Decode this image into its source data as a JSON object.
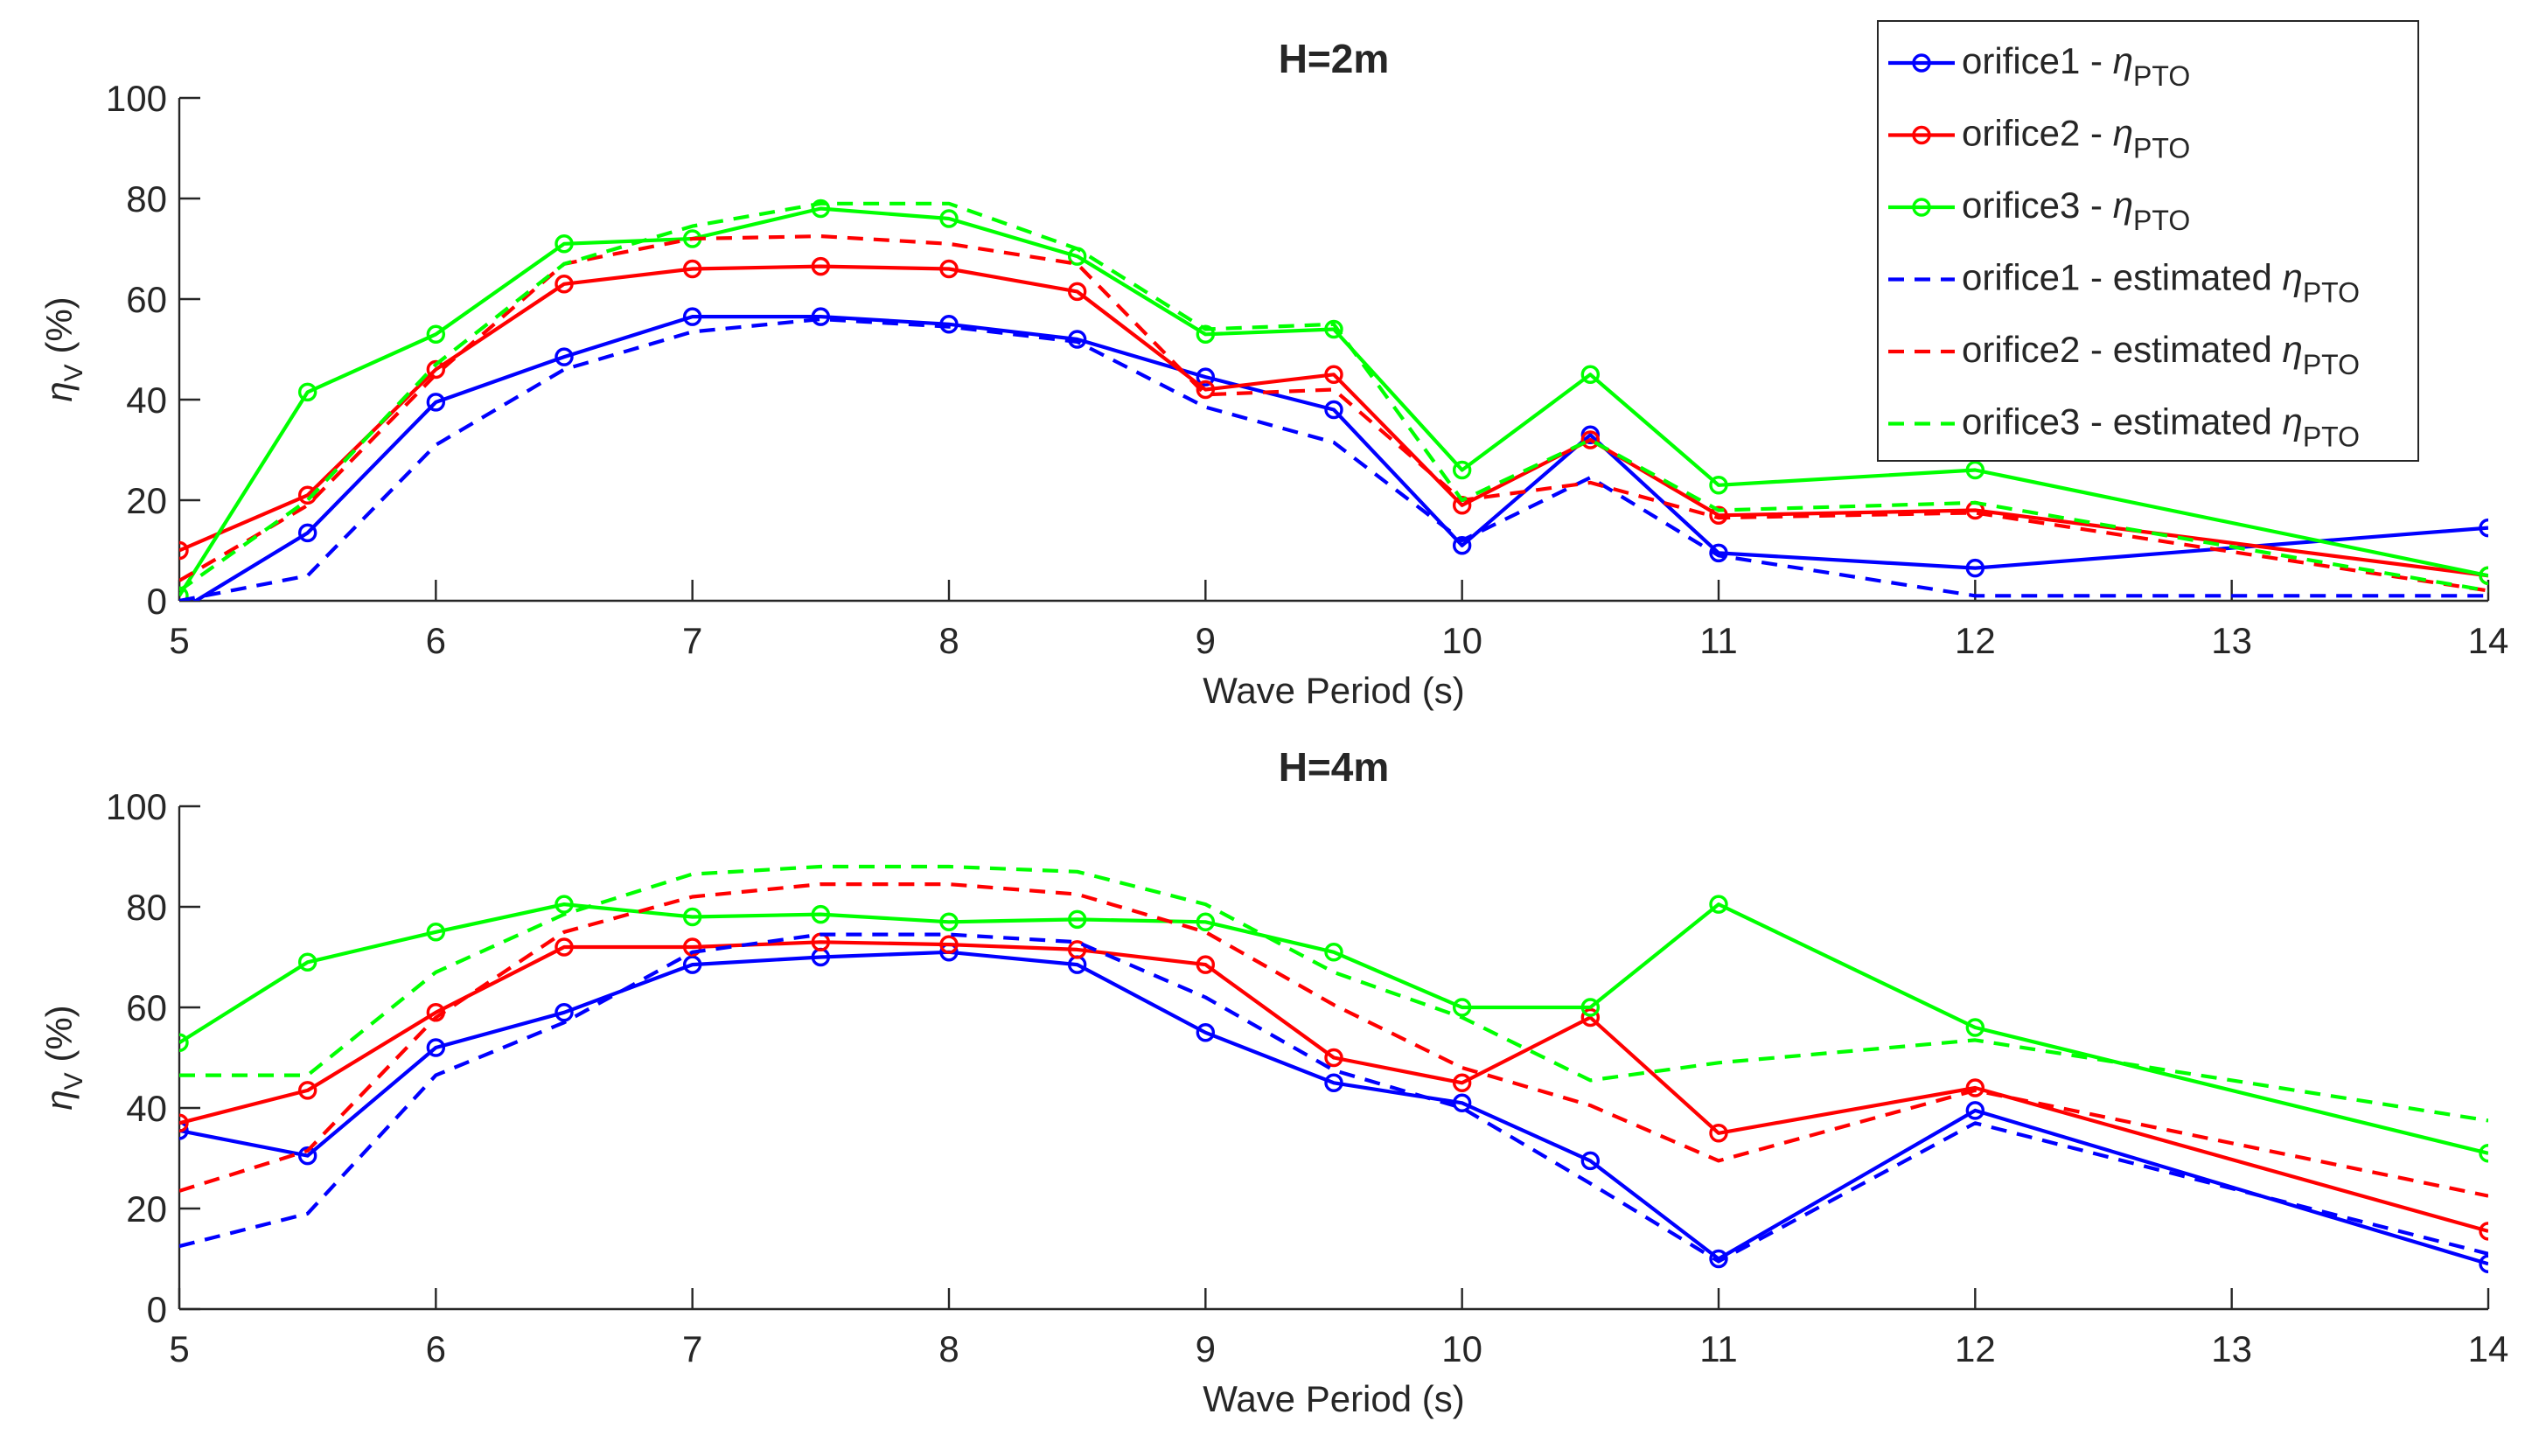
{
  "chart_data": [
    {
      "type": "line",
      "title": "H=2m",
      "xlabel": "Wave Period (s)",
      "ylabel_main": "η",
      "ylabel_sub": "V",
      "ylabel_unit": " (%)",
      "xlim": [
        5,
        14
      ],
      "ylim": [
        0,
        100
      ],
      "xticks": [
        5,
        6,
        7,
        8,
        9,
        10,
        11,
        12,
        13,
        14
      ],
      "yticks": [
        0,
        20,
        40,
        60,
        80,
        100
      ],
      "legend_position": "top-right",
      "series": [
        {
          "name": "orifice1 - ηPTO",
          "color": "#0000ff",
          "style": "solid",
          "markers": true,
          "x": [
            5,
            5.5,
            6,
            6.5,
            7,
            7.5,
            8,
            8.5,
            9,
            9.5,
            10,
            10.5,
            11,
            12,
            14
          ],
          "y": [
            -2,
            13.5,
            39.5,
            48.5,
            56.5,
            56.5,
            55,
            52,
            44.5,
            38,
            11,
            33,
            9.5,
            6.5,
            14.5
          ]
        },
        {
          "name": "orifice2 - ηPTO",
          "color": "#ff0000",
          "style": "solid",
          "markers": true,
          "x": [
            5,
            5.5,
            6,
            6.5,
            7,
            7.5,
            8,
            8.5,
            9,
            9.5,
            10,
            10.5,
            11,
            12,
            14
          ],
          "y": [
            10,
            21,
            46,
            63,
            66,
            66.5,
            66,
            61.5,
            42,
            45,
            19,
            32,
            17,
            18,
            5
          ]
        },
        {
          "name": "orifice3 - ηPTO",
          "color": "#00ff00",
          "style": "solid",
          "markers": true,
          "x": [
            5,
            5.5,
            6,
            6.5,
            7,
            7.5,
            8,
            8.5,
            9,
            9.5,
            10,
            10.5,
            11,
            12,
            14
          ],
          "y": [
            1,
            41.5,
            53,
            71,
            72,
            78,
            76,
            68.5,
            53,
            54,
            26,
            45,
            23,
            26,
            5
          ]
        },
        {
          "name": "orifice1 - estimated ηPTO",
          "color": "#0000ff",
          "style": "dashed",
          "markers": false,
          "x": [
            5,
            5.5,
            6,
            6.5,
            7,
            7.5,
            8,
            8.5,
            9,
            9.5,
            10,
            10.5,
            11,
            12,
            14
          ],
          "y": [
            0,
            5,
            31,
            46,
            53.5,
            56,
            54.5,
            51.5,
            38.5,
            31.5,
            12,
            24.5,
            9,
            1,
            1
          ]
        },
        {
          "name": "orifice2 - estimated ηPTO",
          "color": "#ff0000",
          "style": "dashed",
          "markers": false,
          "x": [
            5,
            5.5,
            6,
            6.5,
            7,
            7.5,
            8,
            8.5,
            9,
            9.5,
            10,
            10.5,
            11,
            12,
            14
          ],
          "y": [
            4,
            19,
            45,
            67,
            72,
            72.5,
            71,
            67,
            41,
            42,
            20,
            23.5,
            16.5,
            17.5,
            2
          ]
        },
        {
          "name": "orifice3 - estimated ηPTO",
          "color": "#00ff00",
          "style": "dashed",
          "markers": false,
          "x": [
            5,
            5.5,
            6,
            6.5,
            7,
            7.5,
            8,
            8.5,
            9,
            9.5,
            10,
            10.5,
            11,
            12,
            14
          ],
          "y": [
            2,
            20,
            47,
            67,
            74.5,
            79,
            79,
            70,
            54,
            55,
            20,
            32,
            18,
            19.5,
            2
          ]
        }
      ]
    },
    {
      "type": "line",
      "title": "H=4m",
      "xlabel": "Wave Period (s)",
      "ylabel_main": "η",
      "ylabel_sub": "V",
      "ylabel_unit": " (%)",
      "xlim": [
        5,
        14
      ],
      "ylim": [
        0,
        100
      ],
      "xticks": [
        5,
        6,
        7,
        8,
        9,
        10,
        11,
        12,
        13,
        14
      ],
      "yticks": [
        0,
        20,
        40,
        60,
        80,
        100
      ],
      "series": [
        {
          "name": "orifice1 - ηPTO",
          "color": "#0000ff",
          "style": "solid",
          "markers": true,
          "x": [
            5,
            5.5,
            6,
            6.5,
            7,
            7.5,
            8,
            8.5,
            9,
            9.5,
            10,
            10.5,
            11,
            12,
            14
          ],
          "y": [
            35.5,
            30.5,
            52,
            59,
            68.5,
            70,
            71,
            68.5,
            55,
            45,
            41,
            29.5,
            10,
            39.5,
            9
          ]
        },
        {
          "name": "orifice2 - ηPTO",
          "color": "#ff0000",
          "style": "solid",
          "markers": true,
          "x": [
            5,
            5.5,
            6,
            6.5,
            7,
            7.5,
            8,
            8.5,
            9,
            9.5,
            10,
            10.5,
            11,
            12,
            14
          ],
          "y": [
            37,
            43.5,
            59,
            72,
            72,
            73,
            72.5,
            71.5,
            68.5,
            50,
            45,
            58,
            35,
            44,
            15.5
          ]
        },
        {
          "name": "orifice3 - ηPTO",
          "color": "#00ff00",
          "style": "solid",
          "markers": true,
          "x": [
            5,
            5.5,
            6,
            6.5,
            7,
            7.5,
            8,
            8.5,
            9,
            9.5,
            10,
            10.5,
            11,
            12,
            14
          ],
          "y": [
            53,
            69,
            75,
            80.5,
            78,
            78.5,
            77,
            77.5,
            77,
            71,
            60,
            60,
            80.5,
            56,
            31
          ]
        },
        {
          "name": "orifice1 - estimated ηPTO",
          "color": "#0000ff",
          "style": "dashed",
          "markers": false,
          "x": [
            5,
            5.5,
            6,
            6.5,
            7,
            7.5,
            8,
            8.5,
            9,
            9.5,
            10,
            10.5,
            11,
            12,
            14
          ],
          "y": [
            12.5,
            19,
            46.5,
            57,
            71,
            74.5,
            74.5,
            73,
            62,
            47.5,
            40,
            25,
            9.5,
            37,
            11
          ]
        },
        {
          "name": "orifice2 - estimated ηPTO",
          "color": "#ff0000",
          "style": "dashed",
          "markers": false,
          "x": [
            5,
            5.5,
            6,
            6.5,
            7,
            7.5,
            8,
            8.5,
            9,
            9.5,
            10,
            10.5,
            11,
            12,
            14
          ],
          "y": [
            23.5,
            31.5,
            58,
            75,
            82,
            84.5,
            84.5,
            82.5,
            75,
            60.5,
            48,
            40.5,
            29.5,
            43.5,
            22.5
          ]
        },
        {
          "name": "orifice3 - estimated ηPTO",
          "color": "#00ff00",
          "style": "dashed",
          "markers": false,
          "x": [
            5,
            5.5,
            6,
            6.5,
            7,
            7.5,
            8,
            8.5,
            9,
            9.5,
            10,
            10.5,
            11,
            12,
            14
          ],
          "y": [
            46.5,
            46.5,
            67,
            78.5,
            86.5,
            88,
            88,
            87,
            80.5,
            67,
            58,
            45.5,
            49,
            53.5,
            37.5
          ]
        }
      ]
    }
  ],
  "legend": {
    "items": [
      {
        "prefix": "orifice1 - ",
        "symbol": "η",
        "sub": "PTO",
        "color": "#0000ff",
        "style": "solid",
        "marker": true
      },
      {
        "prefix": "orifice2 - ",
        "symbol": "η",
        "sub": "PTO",
        "color": "#ff0000",
        "style": "solid",
        "marker": true
      },
      {
        "prefix": "orifice3 - ",
        "symbol": "η",
        "sub": "PTO",
        "color": "#00ff00",
        "style": "solid",
        "marker": true
      },
      {
        "prefix": "orifice1 - estimated ",
        "symbol": "η",
        "sub": "PTO",
        "color": "#0000ff",
        "style": "dashed",
        "marker": false
      },
      {
        "prefix": "orifice2 - estimated ",
        "symbol": "η",
        "sub": "PTO",
        "color": "#ff0000",
        "style": "dashed",
        "marker": false
      },
      {
        "prefix": "orifice3 - estimated ",
        "symbol": "η",
        "sub": "PTO",
        "color": "#00ff00",
        "style": "dashed",
        "marker": false
      }
    ]
  }
}
